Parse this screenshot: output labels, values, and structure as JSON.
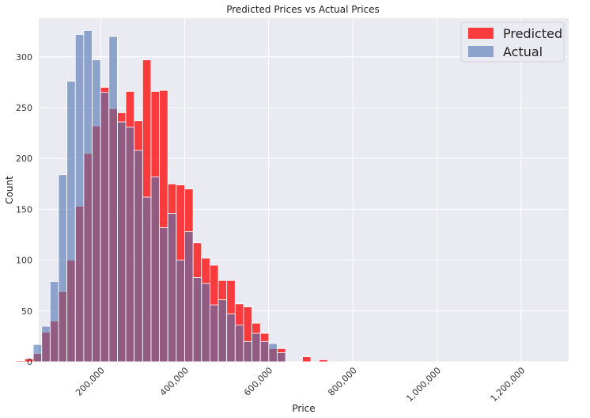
{
  "chart_data": {
    "type": "bar",
    "title": "Predicted Prices vs Actual Prices",
    "xlabel": "Price",
    "ylabel": "Count",
    "xlim": [
      0,
      1200000
    ],
    "ylim": [
      0,
      338
    ],
    "x_ticks": [
      200000,
      400000,
      600000,
      800000,
      1000000,
      1200000
    ],
    "x_tick_labels": [
      "200,000",
      "400,000",
      "600,000",
      "800,000",
      "1,000,000",
      "1,200,000"
    ],
    "y_ticks": [
      0,
      50,
      100,
      150,
      200,
      250,
      300
    ],
    "y_tick_labels": [
      "0",
      "50",
      "100",
      "150",
      "200",
      "250",
      "300"
    ],
    "grid": true,
    "legend_position": "top-right",
    "series": [
      {
        "name": "Predicted",
        "color": "#ff0000",
        "bins": [
          {
            "x0": 0,
            "x1": 20,
            "count": 1
          },
          {
            "x0": 20,
            "x1": 40,
            "count": 3
          },
          {
            "x0": 40,
            "x1": 60,
            "count": 8
          },
          {
            "x0": 60,
            "x1": 80,
            "count": 29
          },
          {
            "x0": 80,
            "x1": 100,
            "count": 40
          },
          {
            "x0": 100,
            "x1": 120,
            "count": 69
          },
          {
            "x0": 120,
            "x1": 140,
            "count": 100
          },
          {
            "x0": 140,
            "x1": 160,
            "count": 153
          },
          {
            "x0": 160,
            "x1": 180,
            "count": 205
          },
          {
            "x0": 180,
            "x1": 200,
            "count": 232
          },
          {
            "x0": 200,
            "x1": 220,
            "count": 270
          },
          {
            "x0": 220,
            "x1": 240,
            "count": 249
          },
          {
            "x0": 240,
            "x1": 260,
            "count": 245
          },
          {
            "x0": 260,
            "x1": 280,
            "count": 266
          },
          {
            "x0": 280,
            "x1": 300,
            "count": 237
          },
          {
            "x0": 300,
            "x1": 320,
            "count": 297
          },
          {
            "x0": 320,
            "x1": 340,
            "count": 266
          },
          {
            "x0": 340,
            "x1": 360,
            "count": 267
          },
          {
            "x0": 360,
            "x1": 380,
            "count": 175
          },
          {
            "x0": 380,
            "x1": 400,
            "count": 174
          },
          {
            "x0": 400,
            "x1": 420,
            "count": 170
          },
          {
            "x0": 420,
            "x1": 440,
            "count": 117
          },
          {
            "x0": 440,
            "x1": 460,
            "count": 102
          },
          {
            "x0": 460,
            "x1": 480,
            "count": 95
          },
          {
            "x0": 480,
            "x1": 500,
            "count": 80
          },
          {
            "x0": 500,
            "x1": 520,
            "count": 80
          },
          {
            "x0": 520,
            "x1": 540,
            "count": 57
          },
          {
            "x0": 540,
            "x1": 560,
            "count": 54
          },
          {
            "x0": 560,
            "x1": 580,
            "count": 38
          },
          {
            "x0": 580,
            "x1": 600,
            "count": 28
          },
          {
            "x0": 600,
            "x1": 620,
            "count": 13
          },
          {
            "x0": 620,
            "x1": 640,
            "count": 13
          },
          {
            "x0": 640,
            "x1": 660,
            "count": 0
          },
          {
            "x0": 660,
            "x1": 680,
            "count": 0
          },
          {
            "x0": 680,
            "x1": 700,
            "count": 5
          },
          {
            "x0": 700,
            "x1": 720,
            "count": 0
          },
          {
            "x0": 720,
            "x1": 740,
            "count": 2
          }
        ]
      },
      {
        "name": "Actual",
        "color": "#4c72b0",
        "bins": [
          {
            "x0": 40,
            "x1": 60,
            "count": 17
          },
          {
            "x0": 60,
            "x1": 80,
            "count": 35
          },
          {
            "x0": 80,
            "x1": 100,
            "count": 79
          },
          {
            "x0": 100,
            "x1": 120,
            "count": 184
          },
          {
            "x0": 120,
            "x1": 140,
            "count": 276
          },
          {
            "x0": 140,
            "x1": 160,
            "count": 322
          },
          {
            "x0": 160,
            "x1": 180,
            "count": 326
          },
          {
            "x0": 180,
            "x1": 200,
            "count": 297
          },
          {
            "x0": 200,
            "x1": 220,
            "count": 265
          },
          {
            "x0": 220,
            "x1": 240,
            "count": 320
          },
          {
            "x0": 240,
            "x1": 260,
            "count": 236
          },
          {
            "x0": 260,
            "x1": 280,
            "count": 231
          },
          {
            "x0": 280,
            "x1": 300,
            "count": 208
          },
          {
            "x0": 300,
            "x1": 320,
            "count": 162
          },
          {
            "x0": 320,
            "x1": 340,
            "count": 182
          },
          {
            "x0": 340,
            "x1": 360,
            "count": 132
          },
          {
            "x0": 360,
            "x1": 380,
            "count": 146
          },
          {
            "x0": 380,
            "x1": 400,
            "count": 100
          },
          {
            "x0": 400,
            "x1": 420,
            "count": 128
          },
          {
            "x0": 420,
            "x1": 440,
            "count": 83
          },
          {
            "x0": 440,
            "x1": 460,
            "count": 77
          },
          {
            "x0": 460,
            "x1": 480,
            "count": 56
          },
          {
            "x0": 480,
            "x1": 500,
            "count": 61
          },
          {
            "x0": 500,
            "x1": 520,
            "count": 47
          },
          {
            "x0": 520,
            "x1": 540,
            "count": 36
          },
          {
            "x0": 540,
            "x1": 560,
            "count": 20
          },
          {
            "x0": 560,
            "x1": 580,
            "count": 28
          },
          {
            "x0": 580,
            "x1": 600,
            "count": 20
          },
          {
            "x0": 600,
            "x1": 620,
            "count": 18
          },
          {
            "x0": 620,
            "x1": 640,
            "count": 9
          }
        ]
      }
    ]
  }
}
